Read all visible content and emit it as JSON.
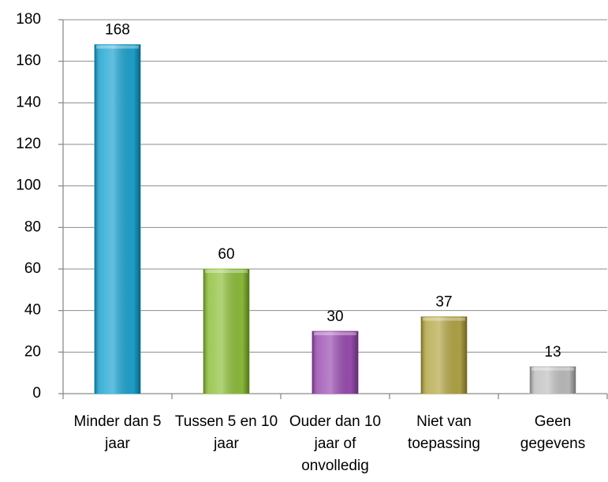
{
  "chart_data": {
    "type": "bar",
    "categories": [
      "Minder dan 5 jaar",
      "Tussen 5 en 10 jaar",
      "Ouder dan 10 jaar of onvolledig",
      "Niet van toepassing",
      "Geen gegevens"
    ],
    "values": [
      168,
      60,
      30,
      37,
      13
    ],
    "colors": [
      "#1ea5d2",
      "#8fc03c",
      "#9c4fb3",
      "#b6a748",
      "#c0c0c0"
    ],
    "ylim": [
      0,
      180
    ],
    "yticks": [
      0,
      20,
      40,
      60,
      80,
      100,
      120,
      140,
      160,
      180
    ],
    "grid": true
  }
}
